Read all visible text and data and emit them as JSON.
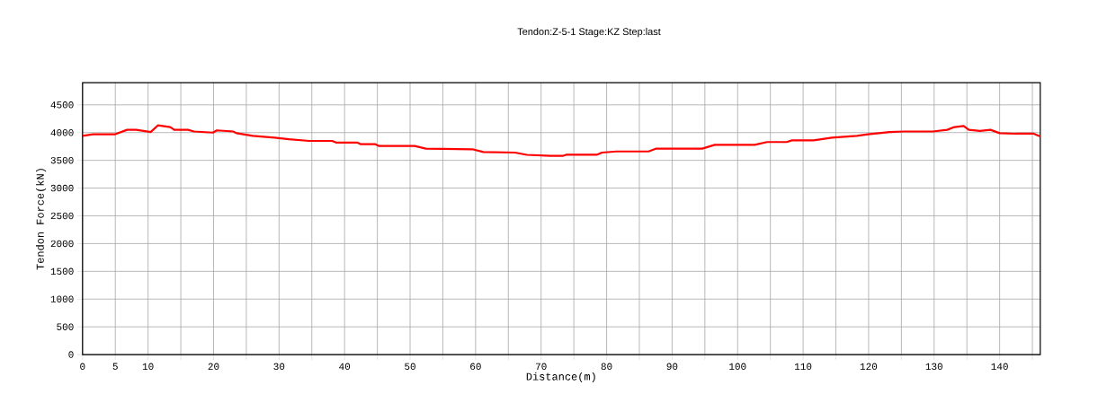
{
  "chart_data": {
    "type": "line",
    "title": "Tendon:Z-5-1 Stage:KZ Step:last",
    "xlabel": "Distance(m)",
    "ylabel": "Tendon Force(kN)",
    "x": [
      0,
      1.6,
      5,
      6.8,
      8.2,
      10.4,
      11.5,
      13.4,
      14,
      16.1,
      17,
      19.9,
      20.5,
      23,
      23.5,
      26,
      29.3,
      31.5,
      34.6,
      38.1,
      38.7,
      41.9,
      42.5,
      44.7,
      45.2,
      50.7,
      52.4,
      59.5,
      61.2,
      66,
      66.9,
      67.8,
      71.4,
      73.3,
      73.8,
      78.5,
      79.3,
      81.5,
      86.4,
      87.5,
      94.6,
      96.5,
      102.6,
      104.5,
      107.5,
      108.3,
      111.6,
      114.4,
      118.2,
      119.9,
      123.2,
      125.4,
      129.8,
      132,
      133.1,
      134.5,
      135.3,
      137,
      138.6,
      140,
      142.5,
      145.2,
      146.2
    ],
    "series": [
      {
        "color": "#ff0000",
        "values": [
          3940,
          3970,
          3970,
          4050,
          4050,
          4010,
          4130,
          4100,
          4050,
          4050,
          4020,
          4000,
          4040,
          4020,
          3990,
          3940,
          3910,
          3880,
          3850,
          3850,
          3820,
          3820,
          3790,
          3790,
          3760,
          3760,
          3710,
          3700,
          3650,
          3640,
          3620,
          3600,
          3580,
          3580,
          3600,
          3600,
          3640,
          3660,
          3660,
          3710,
          3710,
          3780,
          3780,
          3830,
          3830,
          3860,
          3860,
          3910,
          3940,
          3970,
          4010,
          4020,
          4020,
          4050,
          4100,
          4120,
          4050,
          4030,
          4050,
          3990,
          3980,
          3980,
          3930
        ]
      }
    ],
    "xlim": [
      0,
      146.2
    ],
    "ylim": [
      0,
      4900
    ],
    "xticks": [
      0,
      5,
      10,
      {
        "value": 15,
        "label": null
      },
      20,
      {
        "value": 25,
        "label": null
      },
      30,
      {
        "value": 35,
        "label": null
      },
      40,
      {
        "value": 45,
        "label": null
      },
      50,
      {
        "value": 55,
        "label": null
      },
      60,
      {
        "value": 65,
        "label": null
      },
      70,
      {
        "value": 75,
        "label": null
      },
      80,
      {
        "value": 85,
        "label": null
      },
      90,
      {
        "value": 95,
        "label": null
      },
      100,
      {
        "value": 105,
        "label": null
      },
      110,
      {
        "value": 115,
        "label": null
      },
      120,
      {
        "value": 125,
        "label": null
      },
      130,
      {
        "value": 135,
        "label": null
      },
      140,
      {
        "value": 145,
        "label": null
      }
    ],
    "yticks": [
      0,
      500,
      1000,
      1500,
      2000,
      2500,
      3000,
      3500,
      4000,
      4500
    ],
    "grid": true,
    "marker": "none",
    "line_style": "solid"
  }
}
